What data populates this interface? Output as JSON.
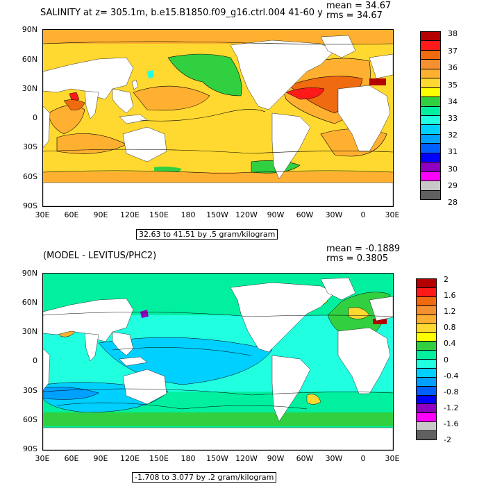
{
  "panel1": {
    "title": "SALINITY at z= 305.1m, b.e15.B1850.f09_g16.ctrl.004  41-60 y",
    "mean_text": "mean = 34.67",
    "rms_text": "rms = 34.67",
    "range_text": "32.63 to 41.51 by .5 gram/kilogram",
    "lat_ticks": [
      "90N",
      "60N",
      "30N",
      "0",
      "30S",
      "60S",
      "90S"
    ],
    "lon_ticks": [
      "30E",
      "60E",
      "90E",
      "120E",
      "150E",
      "180",
      "150W",
      "120W",
      "90W",
      "60W",
      "30W",
      "0",
      "30E"
    ],
    "colorbar_labels": [
      "38",
      "37",
      "36",
      "35",
      "34",
      "33",
      "32",
      "31",
      "30",
      "29",
      "28"
    ],
    "colorbar_colors": [
      "#b40000",
      "#ff1a1a",
      "#f06a10",
      "#f59030",
      "#ffb030",
      "#ffd830",
      "#ffff00",
      "#30d040",
      "#00f0a0",
      "#20ffe0",
      "#00d0ff",
      "#00a0ff",
      "#0060ff",
      "#0000ff",
      "#9000c0",
      "#ff00ff",
      "#c8c8c8",
      "#606060"
    ]
  },
  "panel2": {
    "title": "(MODEL - LEVITUS/PHC2)",
    "mean_text": "mean = -0.1889",
    "rms_text": "rms = 0.3805",
    "range_text": "-1.708 to 3.077 by .2 gram/kilogram",
    "lat_ticks": [
      "90N",
      "60N",
      "30N",
      "0",
      "30S",
      "60S",
      "90S"
    ],
    "lon_ticks": [
      "30E",
      "60E",
      "90E",
      "120E",
      "150E",
      "180",
      "150W",
      "120W",
      "90W",
      "60W",
      "30W",
      "0",
      "30E"
    ],
    "colorbar_labels": [
      "2",
      "1.6",
      "1.2",
      "0.8",
      "0.4",
      "0",
      "-0.4",
      "-0.8",
      "-1.2",
      "-1.6",
      "-2"
    ],
    "colorbar_colors": [
      "#b40000",
      "#ff1a1a",
      "#f06a10",
      "#f59030",
      "#ffb030",
      "#ffd830",
      "#ffff00",
      "#30d040",
      "#00f0a0",
      "#20ffe0",
      "#00d0ff",
      "#00a0ff",
      "#0060ff",
      "#0000ff",
      "#9000c0",
      "#ff00ff",
      "#c8c8c8",
      "#606060"
    ]
  }
}
